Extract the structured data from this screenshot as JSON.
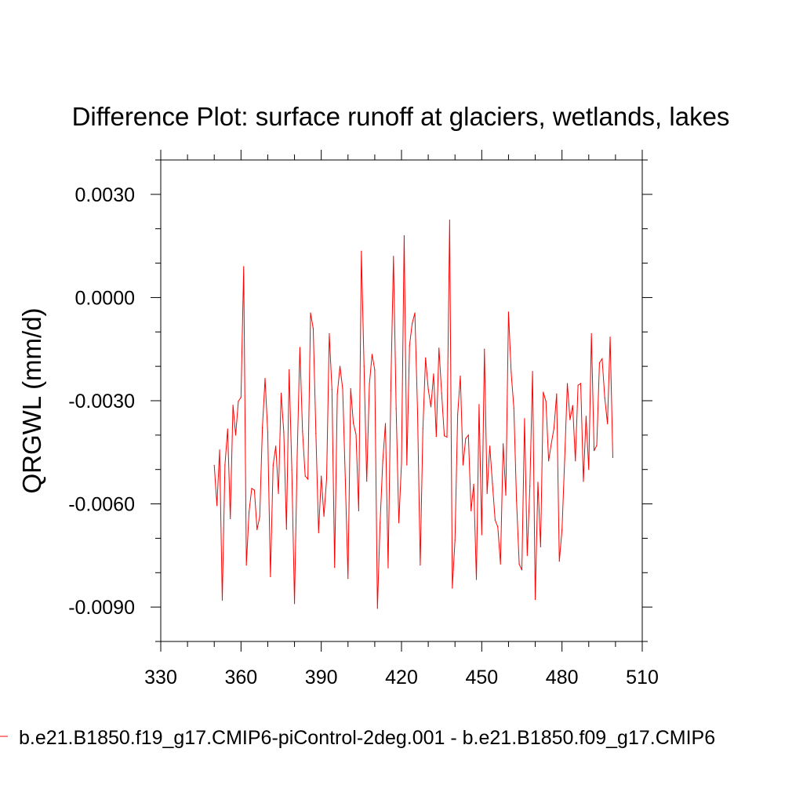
{
  "chart_data": {
    "type": "line",
    "title": "Difference Plot: surface runoff at glaciers, wetlands, lakes",
    "ylabel": "QRGWL  (mm/d)",
    "xlabel": "",
    "xlim": [
      330,
      510
    ],
    "ylim": [
      -0.01,
      0.004
    ],
    "xticks": [
      330,
      360,
      390,
      420,
      450,
      480,
      510
    ],
    "xtick_labels": [
      "330",
      "360",
      "390",
      "420",
      "450",
      "480",
      "510"
    ],
    "yticks": [
      0.003,
      0.0,
      -0.003,
      -0.006,
      -0.009
    ],
    "ytick_labels": [
      "0.0030",
      "0.0000",
      "-0.0030",
      "-0.0060",
      "-0.0090"
    ],
    "legend_position": "bottom",
    "grid": false,
    "series": [
      {
        "name": "b.e21.B1850.f19_g17.CMIP6-piControl-2deg.001 - b.e21.B1850.f09_g17.CMIP6",
        "color": "#ff0000",
        "x": [
          350,
          351,
          352,
          353,
          354,
          355,
          356,
          357,
          358,
          359,
          360,
          361,
          362,
          363,
          364,
          365,
          366,
          367,
          368,
          369,
          370,
          371,
          372,
          373,
          374,
          375,
          376,
          377,
          378,
          379,
          380,
          381,
          382,
          383,
          384,
          385,
          386,
          387,
          388,
          389,
          390,
          391,
          392,
          393,
          394,
          395,
          396,
          397,
          398,
          399,
          400,
          401,
          402,
          403,
          404,
          405,
          406,
          407,
          408,
          409,
          410,
          411,
          412,
          413,
          414,
          415,
          416,
          417,
          418,
          419,
          420,
          421,
          422,
          423,
          424,
          425,
          426,
          427,
          428,
          429,
          430,
          431,
          432,
          433,
          434,
          435,
          436,
          437,
          438,
          439,
          440,
          441,
          442,
          443,
          444,
          445,
          446,
          447,
          448,
          449,
          450,
          451,
          452,
          453,
          454,
          455,
          456,
          457,
          458,
          459,
          460,
          461,
          462,
          463,
          464,
          465,
          466,
          467,
          468,
          469,
          470,
          471,
          472,
          473,
          474,
          475,
          476,
          477,
          478,
          479,
          480,
          481,
          482,
          483,
          484,
          485,
          486,
          487,
          488,
          489,
          490,
          491,
          492,
          493,
          494,
          495,
          496,
          497,
          498,
          499
        ],
        "values": [
          -0.00488,
          -0.00605,
          -0.00443,
          -0.0088,
          -0.00487,
          -0.00382,
          -0.00643,
          -0.00313,
          -0.004,
          -0.00302,
          -0.0029,
          0.0009,
          -0.00778,
          -0.00624,
          -0.00555,
          -0.0056,
          -0.00675,
          -0.00637,
          -0.00379,
          -0.00235,
          -0.00393,
          -0.00812,
          -0.00488,
          -0.00432,
          -0.0057,
          -0.00278,
          -0.00393,
          -0.00674,
          -0.0021,
          -0.00502,
          -0.0089,
          -0.00462,
          -0.00145,
          -0.00389,
          -0.00519,
          -0.00528,
          -0.00045,
          -0.0009,
          -0.00395,
          -0.00684,
          -0.00519,
          -0.00636,
          -0.00527,
          -0.00105,
          -0.00267,
          -0.00785,
          -0.0028,
          -0.002,
          -0.00265,
          -0.0053,
          -0.00817,
          -0.00265,
          -0.00365,
          -0.00398,
          -0.0062,
          0.00135,
          -0.002,
          -0.00534,
          -0.00252,
          -0.00165,
          -0.00211,
          -0.00904,
          -0.00655,
          -0.00475,
          -0.00366,
          -0.00786,
          -0.0027,
          0.0012,
          -0.00323,
          -0.00655,
          -0.0048,
          0.0018,
          -0.00487,
          -0.0014,
          -0.00075,
          -0.00045,
          -0.00332,
          -0.00778,
          -0.00381,
          -0.00175,
          -0.00266,
          -0.00318,
          -0.00222,
          -0.00404,
          -0.00147,
          -0.00278,
          -0.00402,
          -0.00406,
          0.00225,
          -0.00845,
          -0.00705,
          -0.0034,
          -0.00228,
          -0.00487,
          -0.0041,
          -0.004,
          -0.0062,
          -0.00543,
          -0.0082,
          -0.00311,
          -0.0069,
          -0.0015,
          -0.0057,
          -0.00432,
          -0.00541,
          -0.00647,
          -0.00667,
          -0.00775,
          -0.00425,
          -0.00575,
          -0.00042,
          -0.00218,
          -0.00321,
          -0.0059,
          -0.00775,
          -0.00792,
          -0.00352,
          -0.0075,
          -0.00548,
          -0.00215,
          -0.00878,
          -0.00537,
          -0.00725,
          -0.00275,
          -0.00302,
          -0.00475,
          -0.00425,
          -0.0038,
          -0.0028,
          -0.00767,
          -0.00676,
          -0.0047,
          -0.0025,
          -0.00355,
          -0.00314,
          -0.00475,
          -0.00255,
          -0.0025,
          -0.00535,
          -0.00345,
          -0.005,
          -0.00105,
          -0.00445,
          -0.0043,
          -0.0019,
          -0.00178,
          -0.00292,
          -0.00367,
          -0.00115,
          -0.00465
        ]
      }
    ]
  }
}
